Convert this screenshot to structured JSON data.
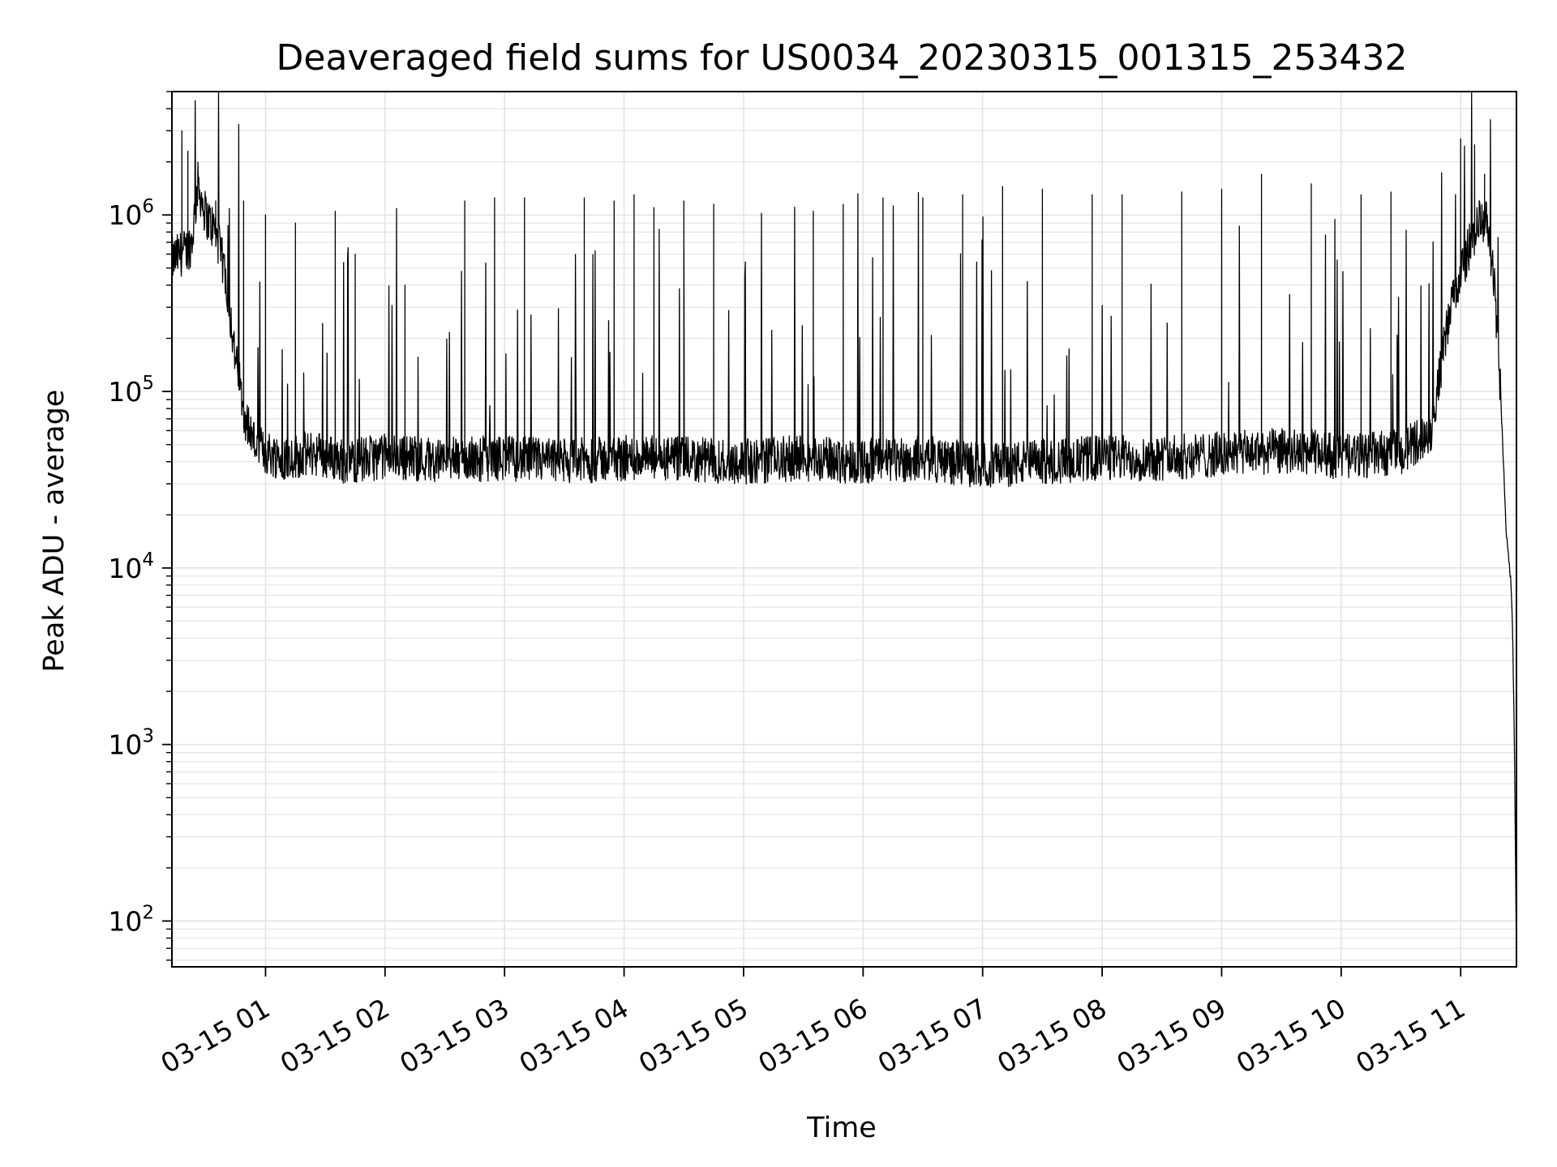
{
  "chart_data": {
    "type": "line",
    "title": "Deaveraged field sums for US0034_20230315_001315_253432",
    "xlabel": "Time",
    "ylabel": "Peak ADU - average",
    "y_scale": "log",
    "ylim": [
      55,
      5000000
    ],
    "xlim": [
      "2023-03-15 00:13",
      "2023-03-15 11:28"
    ],
    "grid": true,
    "line_color": "#000000",
    "grid_color": "#e3e3e3",
    "x_ticks": [
      {
        "value": "2023-03-15 01:00",
        "label": "03-15 01"
      },
      {
        "value": "2023-03-15 02:00",
        "label": "03-15 02"
      },
      {
        "value": "2023-03-15 03:00",
        "label": "03-15 03"
      },
      {
        "value": "2023-03-15 04:00",
        "label": "03-15 04"
      },
      {
        "value": "2023-03-15 05:00",
        "label": "03-15 05"
      },
      {
        "value": "2023-03-15 06:00",
        "label": "03-15 06"
      },
      {
        "value": "2023-03-15 07:00",
        "label": "03-15 07"
      },
      {
        "value": "2023-03-15 08:00",
        "label": "03-15 08"
      },
      {
        "value": "2023-03-15 09:00",
        "label": "03-15 09"
      },
      {
        "value": "2023-03-15 10:00",
        "label": "03-15 10"
      },
      {
        "value": "2023-03-15 11:00",
        "label": "03-15 11"
      }
    ],
    "y_ticks": [
      {
        "value": 100,
        "base": "10",
        "exp": "2"
      },
      {
        "value": 1000,
        "base": "10",
        "exp": "3"
      },
      {
        "value": 10000,
        "base": "10",
        "exp": "4"
      },
      {
        "value": 100000,
        "base": "10",
        "exp": "5"
      },
      {
        "value": 1000000,
        "base": "10",
        "exp": "6"
      }
    ],
    "series": [
      {
        "x": [
          "2023-03-15 00:13",
          "2023-03-15 00:17",
          "2023-03-15 00:20",
          "2023-03-15 00:23",
          "2023-03-15 00:26",
          "2023-03-15 00:30",
          "2023-03-15 00:35",
          "2023-03-15 00:40",
          "2023-03-15 00:45",
          "2023-03-15 00:50",
          "2023-03-15 00:55",
          "2023-03-15 01:00",
          "2023-03-15 01:10",
          "2023-03-15 01:25",
          "2023-03-15 01:40",
          "2023-03-15 02:00",
          "2023-03-15 02:30",
          "2023-03-15 03:00",
          "2023-03-15 03:30",
          "2023-03-15 04:00",
          "2023-03-15 04:30",
          "2023-03-15 05:00",
          "2023-03-15 05:30",
          "2023-03-15 06:00",
          "2023-03-15 06:30",
          "2023-03-15 07:00",
          "2023-03-15 07:30",
          "2023-03-15 08:00",
          "2023-03-15 08:30",
          "2023-03-15 09:00",
          "2023-03-15 09:30",
          "2023-03-15 09:50",
          "2023-03-15 10:00",
          "2023-03-15 10:15",
          "2023-03-15 10:30",
          "2023-03-15 10:45",
          "2023-03-15 10:55",
          "2023-03-15 11:05",
          "2023-03-15 11:10",
          "2023-03-15 11:13",
          "2023-03-15 11:17",
          "2023-03-15 11:20",
          "2023-03-15 11:23",
          "2023-03-15 11:25",
          "2023-03-15 11:26",
          "2023-03-15 11:27",
          "2023-03-15 11:28"
        ],
        "y": [
          550000,
          600000,
          620000,
          700000,
          1500000,
          1000000,
          800000,
          450000,
          150000,
          70000,
          50000,
          45000,
          42000,
          45000,
          40000,
          43000,
          41000,
          42000,
          40000,
          42000,
          41000,
          40000,
          42000,
          40000,
          42000,
          38000,
          40000,
          42000,
          42000,
          44000,
          46000,
          45000,
          42000,
          44000,
          45000,
          60000,
          300000,
          700000,
          950000,
          900000,
          400000,
          100000,
          15000,
          9000,
          5000,
          1000,
          60
        ],
        "spikes": [
          {
            "x": "2023-03-15 00:18",
            "y": 3000000
          },
          {
            "x": "2023-03-15 00:21",
            "y": 2300000
          },
          {
            "x": "2023-03-15 00:35",
            "y": 1200000
          },
          {
            "x": "2023-03-15 00:49",
            "y": 1200000
          },
          {
            "x": "2023-03-15 01:00",
            "y": 1000000
          },
          {
            "x": "2023-03-15 01:15",
            "y": 900000
          },
          {
            "x": "2023-03-15 01:35",
            "y": 1050000
          },
          {
            "x": "2023-03-15 01:45",
            "y": 600000
          },
          {
            "x": "2023-03-15 02:10",
            "y": 400000
          },
          {
            "x": "2023-03-15 02:40",
            "y": 1200000
          },
          {
            "x": "2023-03-15 02:55",
            "y": 1250000
          },
          {
            "x": "2023-03-15 03:10",
            "y": 1250000
          },
          {
            "x": "2023-03-15 03:40",
            "y": 1250000
          },
          {
            "x": "2023-03-15 03:55",
            "y": 1200000
          },
          {
            "x": "2023-03-15 04:05",
            "y": 1300000
          },
          {
            "x": "2023-03-15 04:15",
            "y": 1100000
          },
          {
            "x": "2023-03-15 04:30",
            "y": 1200000
          },
          {
            "x": "2023-03-15 04:45",
            "y": 1150000
          },
          {
            "x": "2023-03-15 05:35",
            "y": 1050000
          },
          {
            "x": "2023-03-15 05:50",
            "y": 1150000
          },
          {
            "x": "2023-03-15 06:10",
            "y": 1250000
          },
          {
            "x": "2023-03-15 06:30",
            "y": 1250000
          },
          {
            "x": "2023-03-15 06:50",
            "y": 1300000
          },
          {
            "x": "2023-03-15 07:10",
            "y": 1450000
          },
          {
            "x": "2023-03-15 07:30",
            "y": 1400000
          },
          {
            "x": "2023-03-15 07:55",
            "y": 1300000
          },
          {
            "x": "2023-03-15 08:10",
            "y": 1300000
          },
          {
            "x": "2023-03-15 08:40",
            "y": 1350000
          },
          {
            "x": "2023-03-15 09:00",
            "y": 1400000
          },
          {
            "x": "2023-03-15 09:20",
            "y": 1700000
          },
          {
            "x": "2023-03-15 09:45",
            "y": 1500000
          },
          {
            "x": "2023-03-15 10:10",
            "y": 1300000
          },
          {
            "x": "2023-03-15 10:25",
            "y": 1350000
          },
          {
            "x": "2023-03-15 11:00",
            "y": 2700000
          },
          {
            "x": "2023-03-15 11:07",
            "y": 2500000
          },
          {
            "x": "2023-03-15 11:12",
            "y": 1700000
          }
        ]
      }
    ]
  }
}
